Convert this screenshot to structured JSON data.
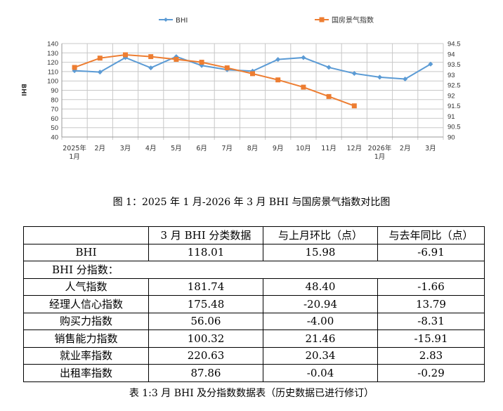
{
  "chart_data": {
    "type": "line",
    "categories": [
      "2025年\n1月",
      "2月",
      "3月",
      "4月",
      "5月",
      "6月",
      "7月",
      "8月",
      "9月",
      "10月",
      "11月",
      "12月",
      "2026年\n1月",
      "2月",
      "3月"
    ],
    "series": [
      {
        "name": "BHI",
        "axis": "left",
        "color": "#5b9bd5",
        "values": [
          111,
          109.5,
          125,
          114,
          126,
          116.5,
          112,
          110.5,
          123,
          125,
          114.5,
          108,
          104,
          102.03,
          118.01
        ]
      },
      {
        "name": "国房景气指数",
        "axis": "right",
        "color": "#ed7d31",
        "values": [
          93.35,
          93.8,
          93.96,
          93.87,
          93.74,
          93.6,
          93.33,
          93.05,
          92.75,
          92.4,
          91.95,
          91.5,
          null,
          null,
          null
        ]
      }
    ],
    "ylabel": "BHI",
    "ylim": [
      40,
      140
    ],
    "yticks": [
      40,
      50,
      60,
      70,
      80,
      90,
      100,
      110,
      120,
      130,
      140
    ],
    "y2lim": [
      90,
      94.5
    ],
    "y2ticks": [
      "90",
      "90.5",
      "91",
      "91.5",
      "92",
      "92.5",
      "93",
      "93.5",
      "94",
      "94.5"
    ],
    "grid": true,
    "legend": "top"
  },
  "caption_chart": "图 1：2025 年 1 月-2026 年 3 月 BHI 与国房景气指数对比图",
  "table": {
    "header": [
      "",
      "3 月 BHI 分类数据",
      "与上月环比（点）",
      "与去年同比（点）"
    ],
    "bhi_row": [
      "BHI",
      "118.01",
      "15.98",
      "-6.91"
    ],
    "sub_title": "BHI 分指数：",
    "rows": [
      [
        "人气指数",
        "181.74",
        "48.40",
        "-1.66"
      ],
      [
        "经理人信心指数",
        "175.48",
        "-20.94",
        "13.79"
      ],
      [
        "购买力指数",
        "56.06",
        "-4.00",
        "-8.31"
      ],
      [
        "销售能力指数",
        "100.32",
        "21.46",
        "-15.91"
      ],
      [
        "就业率指数",
        "220.63",
        "20.34",
        "2.83"
      ],
      [
        "出租率指数",
        "87.86",
        "-0.04",
        "-0.29"
      ]
    ]
  },
  "caption_table": "表 1:3 月 BHI 及分指数数据表（历史数据已进行修订）"
}
